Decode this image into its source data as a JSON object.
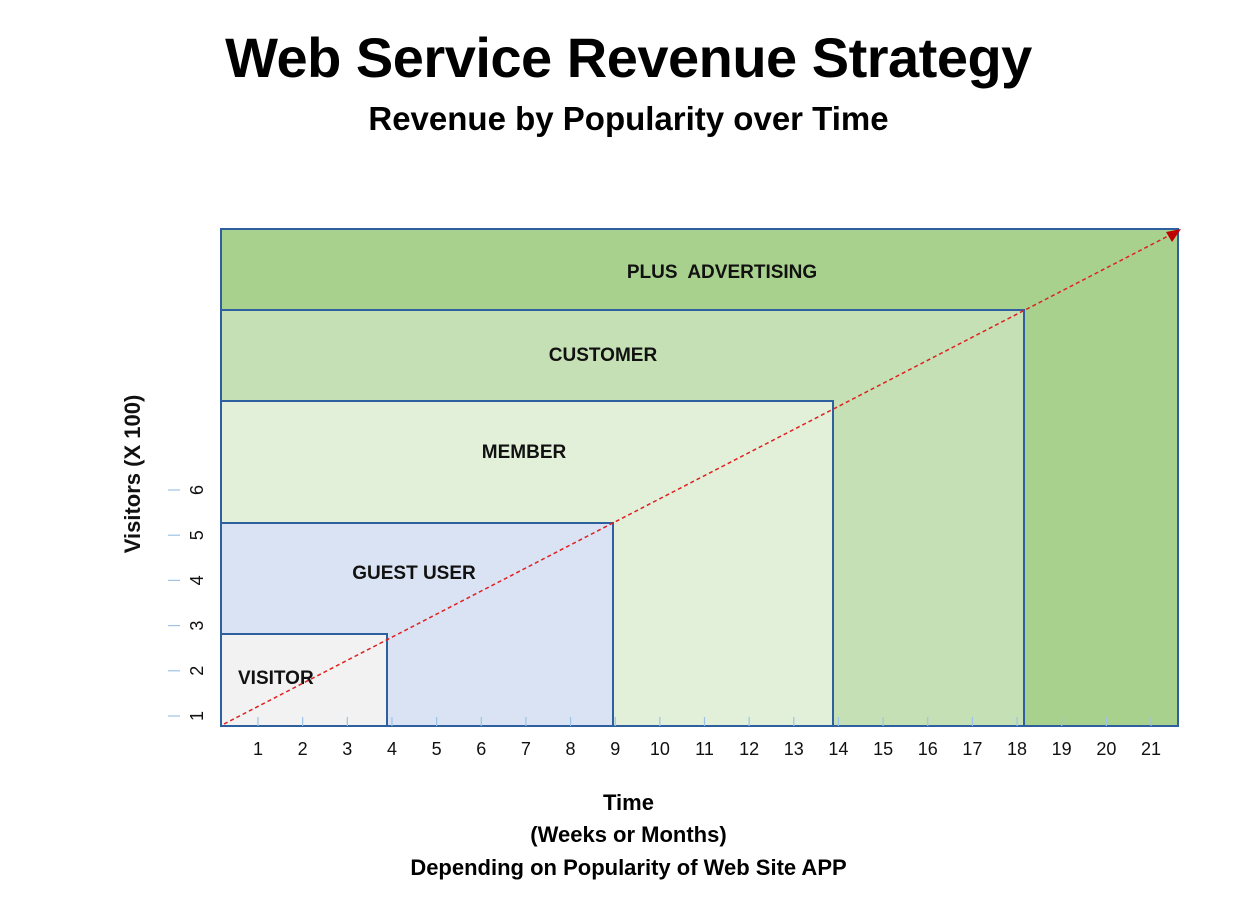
{
  "title": "Web Service Revenue Strategy",
  "subtitle": "Revenue by Popularity over Time",
  "y_axis_label": "Visitors (X 100)",
  "x_axis": {
    "line1": "Time",
    "line2": "(Weeks or Months)",
    "line3": "Depending on Popularity of Web Site APP"
  },
  "x_ticks": [
    "1",
    "2",
    "3",
    "4",
    "5",
    "6",
    "7",
    "8",
    "9",
    "10",
    "11",
    "12",
    "13",
    "14",
    "15",
    "16",
    "17",
    "18",
    "19",
    "20",
    "21"
  ],
  "y_ticks": [
    "1",
    "2",
    "3",
    "4",
    "5",
    "6"
  ],
  "tiers": [
    {
      "label": "PLUS  ADVERTISING",
      "color": "#a9d18e"
    },
    {
      "label": "CUSTOMER",
      "color": "#c5e0b4"
    },
    {
      "label": "MEMBER",
      "color": "#e2f0d9"
    },
    {
      "label": "GUEST USER",
      "color": "#dae3f3"
    },
    {
      "label": "VISITOR",
      "color": "#f2f2f2"
    }
  ],
  "colors": {
    "border": "#2e5f9e",
    "trend": "#e02020",
    "arrow": "#c00000",
    "tick": "#9dc3e6"
  }
}
